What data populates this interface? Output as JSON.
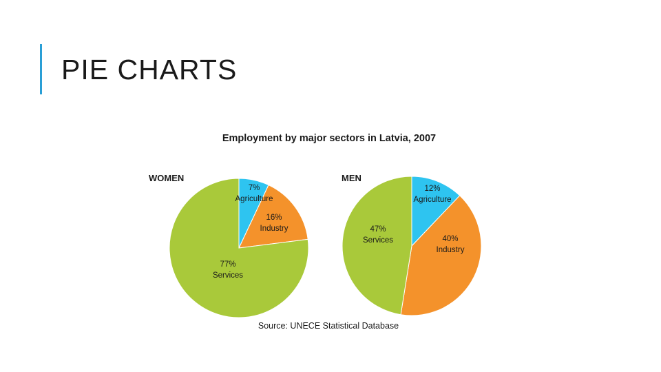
{
  "slide": {
    "title": "PIE CHARTS"
  },
  "chart_data": {
    "type": "pie",
    "title": "Employment by major sectors in Latvia, 2007",
    "source": "Source: UNECE Statistical Database",
    "colors": {
      "Agriculture": "#2ec4f0",
      "Industry": "#f4922b",
      "Services": "#a9c93a"
    },
    "charts": [
      {
        "label": "WOMEN",
        "slices": [
          {
            "category": "Agriculture",
            "value": 7,
            "pct_label": "7%"
          },
          {
            "category": "Industry",
            "value": 16,
            "pct_label": "16%"
          },
          {
            "category": "Services",
            "value": 77,
            "pct_label": "77%"
          }
        ]
      },
      {
        "label": "MEN",
        "slices": [
          {
            "category": "Agriculture",
            "value": 12,
            "pct_label": "12%"
          },
          {
            "category": "Industry",
            "value": 40,
            "pct_label": "40%"
          },
          {
            "category": "Services",
            "value": 47,
            "pct_label": "47%"
          }
        ]
      }
    ]
  }
}
